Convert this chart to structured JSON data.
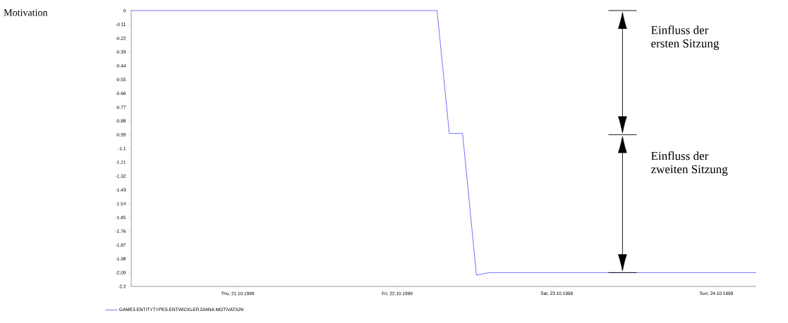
{
  "chart_data": {
    "type": "line",
    "x": [
      "1999-10-20T08:00",
      "1999-10-22T06:00",
      "1999-10-22T07:50",
      "1999-10-22T09:50",
      "1999-10-22T11:55",
      "1999-10-22T13:50",
      "1999-10-24T06:00"
    ],
    "series": [
      {
        "name": "GAME3.ENTITYTYPES.ENTWICKLER.DIANA.MOTIVATION",
        "color": "#4f4fff",
        "values": [
          0,
          0,
          -0.98,
          -0.98,
          -2.11,
          -2.09,
          -2.09
        ]
      }
    ],
    "xlim": [
      "1999-10-20T08:00",
      "1999-10-24T06:00"
    ],
    "xticks": [
      {
        "value": "1999-10-21",
        "label": "Thu, 21.10.1999"
      },
      {
        "value": "1999-10-22",
        "label": "Fri, 22.10.1999"
      },
      {
        "value": "1999-10-23",
        "label": "Sat, 23.10.1999"
      },
      {
        "value": "1999-10-24",
        "label": "Sun, 24.10.1999"
      }
    ],
    "ylim": [
      -2.2,
      0
    ],
    "yticks": [
      0,
      -0.11,
      -0.22,
      -0.33,
      -0.44,
      -0.55,
      -0.66,
      -0.77,
      -0.88,
      -0.99,
      -1.1,
      -1.21,
      -1.32,
      -1.43,
      -1.54,
      -1.65,
      -1.76,
      -1.87,
      -1.98,
      -2.09,
      -2.2
    ],
    "annotations": [
      "Motivation",
      "Einfluss der",
      "ersten Sitzung",
      "Einfluss der",
      "zweiten Sitzung"
    ],
    "legend": "bottom left",
    "line_style": "solid",
    "marker": "none",
    "grid": false
  }
}
